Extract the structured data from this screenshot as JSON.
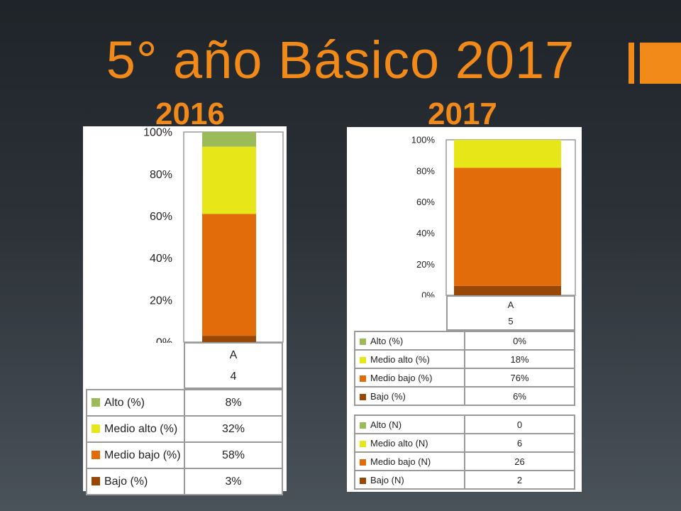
{
  "slide": {
    "title": "5° año Básico 2017",
    "accent_color": "#f28a1a"
  },
  "colors": {
    "alto": "#9bbb59",
    "medio_alto": "#e6e619",
    "medio_bajo": "#e36c0a",
    "bajo": "#984806"
  },
  "chart_data": [
    {
      "type": "bar",
      "stacked": true,
      "title": "2016",
      "categories": [
        "A"
      ],
      "sub_label": "4",
      "ylim": [
        0,
        100
      ],
      "yticks": [
        "0%",
        "20%",
        "40%",
        "60%",
        "80%",
        "100%"
      ],
      "series": [
        {
          "name": "Bajo (%)",
          "values": [
            3
          ]
        },
        {
          "name": "Medio bajo (%)",
          "values": [
            58
          ]
        },
        {
          "name": "Medio alto (%)",
          "values": [
            32
          ]
        },
        {
          "name": "Alto (%)",
          "values": [
            8
          ]
        }
      ],
      "table_pct": [
        {
          "label": "Alto (%)",
          "value": "8%"
        },
        {
          "label": "Medio alto (%)",
          "value": "32%"
        },
        {
          "label": "Medio bajo (%)",
          "value": "58%"
        },
        {
          "label": "Bajo (%)",
          "value": "3%"
        }
      ]
    },
    {
      "type": "bar",
      "stacked": true,
      "title": "2017",
      "categories": [
        "A"
      ],
      "sub_label": "5",
      "ylim": [
        0,
        100
      ],
      "yticks": [
        "0%",
        "20%",
        "40%",
        "60%",
        "80%",
        "100%"
      ],
      "series": [
        {
          "name": "Bajo (%)",
          "values": [
            6
          ]
        },
        {
          "name": "Medio bajo (%)",
          "values": [
            76
          ]
        },
        {
          "name": "Medio alto (%)",
          "values": [
            18
          ]
        },
        {
          "name": "Alto (%)",
          "values": [
            0
          ]
        }
      ],
      "table_pct": [
        {
          "label": "Alto (%)",
          "value": "0%"
        },
        {
          "label": "Medio alto (%)",
          "value": "18%"
        },
        {
          "label": "Medio bajo (%)",
          "value": "76%"
        },
        {
          "label": "Bajo (%)",
          "value": "6%"
        }
      ],
      "table_n": [
        {
          "label": "Alto (N)",
          "value": "0"
        },
        {
          "label": "Medio alto (N)",
          "value": "6"
        },
        {
          "label": "Medio bajo (N)",
          "value": "26"
        },
        {
          "label": "Bajo (N)",
          "value": "2"
        }
      ]
    }
  ]
}
